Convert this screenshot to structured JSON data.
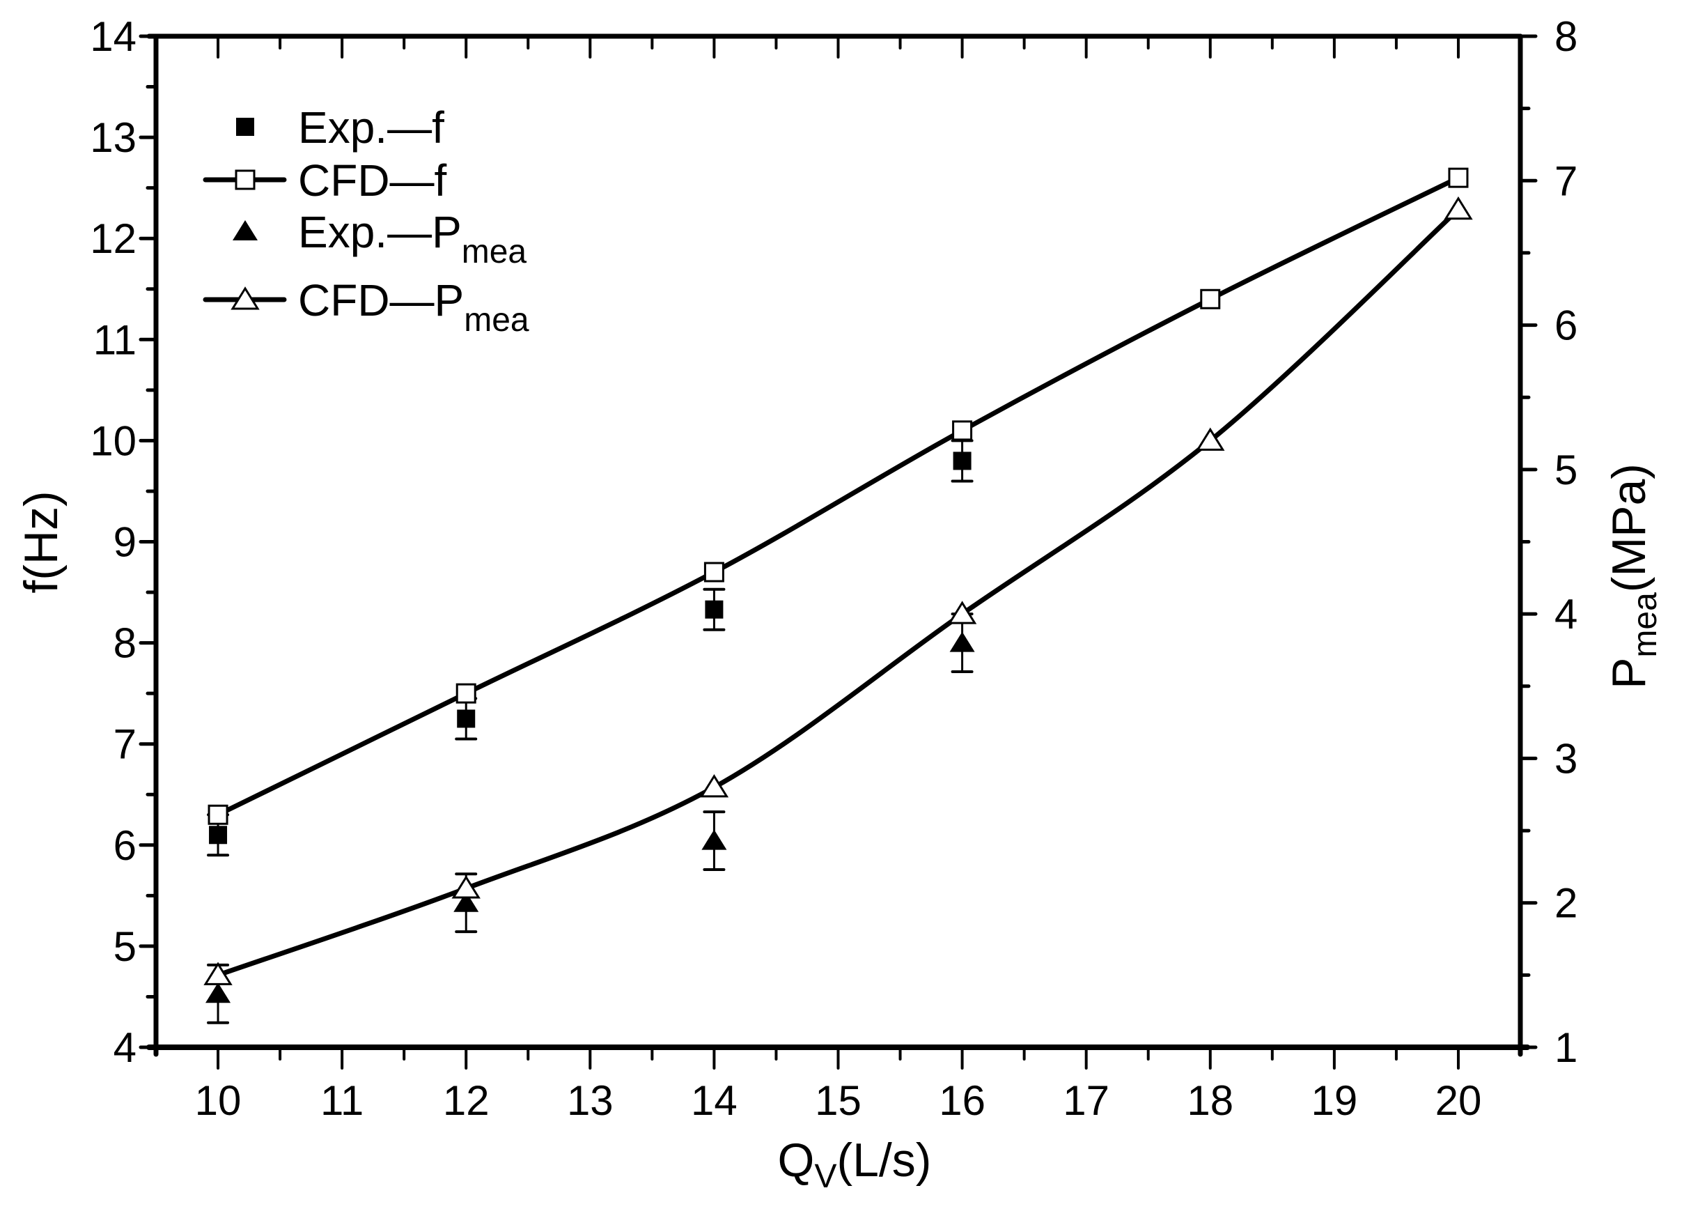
{
  "chart_data": {
    "type": "line",
    "title": "",
    "xlabel": "Q_V(L/s)",
    "xlabel_main": "Q",
    "xlabel_sub": "V",
    "xlabel_rest": "(L/s)",
    "ylabel": "f(Hz)",
    "y2label": "P_mea(MPa)",
    "y2label_main": "P",
    "y2label_sub": "mea",
    "y2label_rest": "(MPa)",
    "xlim": [
      9.5,
      20.5
    ],
    "ylim": [
      4,
      14
    ],
    "y2lim": [
      1,
      8
    ],
    "xticks": [
      10,
      11,
      12,
      13,
      14,
      15,
      16,
      17,
      18,
      19,
      20
    ],
    "yticks": [
      4,
      5,
      6,
      7,
      8,
      9,
      10,
      11,
      12,
      13,
      14
    ],
    "y2ticks": [
      1,
      2,
      3,
      4,
      5,
      6,
      7,
      8
    ],
    "grid": false,
    "legend_position": "upper left",
    "series": [
      {
        "name": "Exp.—f",
        "label_main": "Exp.—f",
        "label_sub": "",
        "axis": "left",
        "marker": "filled-square",
        "line": false,
        "x": [
          10,
          12,
          14,
          16
        ],
        "values": [
          6.1,
          7.25,
          8.33,
          9.8
        ],
        "error": [
          0.2,
          0.2,
          0.2,
          0.2
        ]
      },
      {
        "name": "CFD—f",
        "label_main": "CFD—f",
        "label_sub": "",
        "axis": "left",
        "marker": "open-square",
        "line": true,
        "x": [
          10,
          12,
          14,
          16,
          18,
          20
        ],
        "values": [
          6.3,
          7.5,
          8.7,
          10.1,
          11.4,
          12.6
        ]
      },
      {
        "name": "Exp.—P_mea",
        "label_main": "Exp.—P",
        "label_sub": "mea",
        "axis": "right",
        "marker": "filled-triangle",
        "line": false,
        "x": [
          10,
          12,
          14,
          16
        ],
        "values": [
          1.37,
          2.0,
          2.43,
          3.8
        ],
        "error": [
          0.2,
          0.2,
          0.2,
          0.2
        ]
      },
      {
        "name": "CFD—P_mea",
        "label_main": "CFD—P",
        "label_sub": "mea",
        "axis": "right",
        "marker": "open-triangle",
        "line": true,
        "x": [
          10,
          12,
          14,
          16,
          18,
          20
        ],
        "values": [
          1.5,
          2.1,
          2.8,
          4.0,
          5.2,
          6.8
        ]
      }
    ],
    "colors": {
      "foreground": "#000000",
      "background": "#ffffff"
    }
  }
}
